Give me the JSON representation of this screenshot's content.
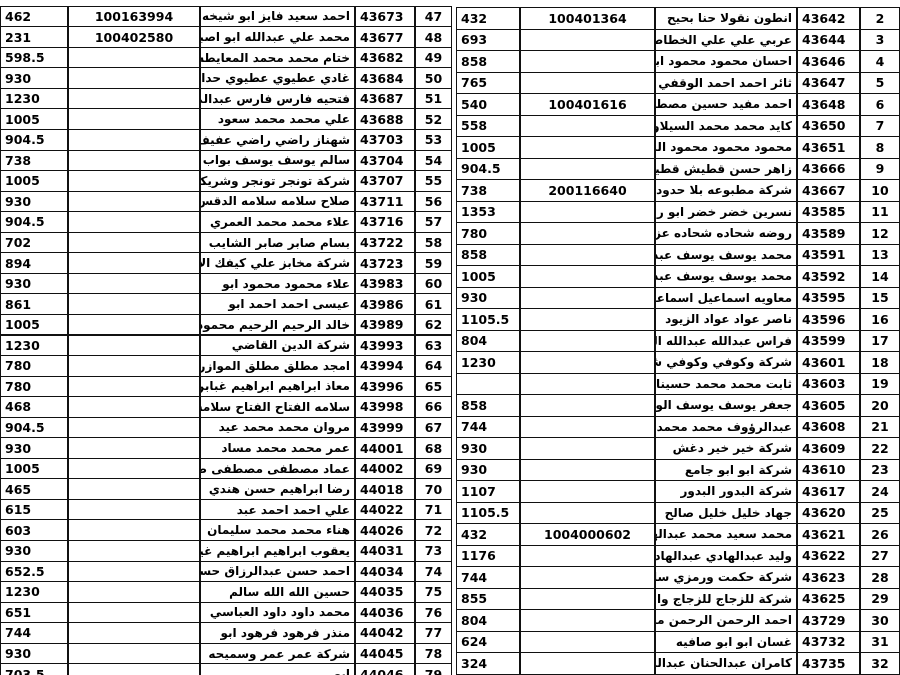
{
  "tables": {
    "left": {
      "rows": [
        {
          "amount": 462,
          "id": "100163994",
          "name": "احمد سعيد فايز ابو شيخه",
          "code": 43673,
          "no": 47
        },
        {
          "amount": 231,
          "id": "100402580",
          "name": "محمد علي عبدالله ابو اصبع",
          "code": 43677,
          "no": 48
        },
        {
          "amount": 598.5,
          "name": "ختام محمد محمد المعايطه",
          "code": 43682,
          "no": 49
        },
        {
          "amount": 930,
          "name": "غادي عطيوي عطيوي حداد",
          "code": 43684,
          "no": 50
        },
        {
          "amount": 1230,
          "name": "فتحيه فارس فارس عبدالمجيد",
          "code": 43687,
          "no": 51
        },
        {
          "amount": 1005,
          "name": "علي محمد محمد سعود",
          "code": 43688,
          "no": 52
        },
        {
          "amount": 904.5,
          "name": "شهناز راضي راضي عفيف",
          "code": 43703,
          "no": 53
        },
        {
          "amount": 738,
          "name": "سالم يوسف يوسف بواب",
          "code": 43704,
          "no": 54
        },
        {
          "amount": 1005,
          "name": "شركة تونجر تونجر وشريكتها",
          "code": 43707,
          "no": 55
        },
        {
          "amount": 930,
          "name": "صلاح سلامه سلامه الدقس",
          "code": 43711,
          "no": 56
        },
        {
          "amount": 904.5,
          "name": "علاء محمد محمد العمري",
          "code": 43716,
          "no": 57
        },
        {
          "amount": 702,
          "name": "بسام صابر صابر الشايب",
          "code": 43722,
          "no": 58
        },
        {
          "amount": 894,
          "name": "شركة مخابز علي كيفك الاليه",
          "code": 43723,
          "no": 59
        },
        {
          "amount": 930,
          "name": "علاء محمود محمود ابو",
          "code": 43983,
          "no": 60
        },
        {
          "amount": 861,
          "name": "عيسى احمد احمد ابو",
          "code": 43986,
          "no": 61
        },
        {
          "amount": 1005,
          "name": "خالد الرحيم الرحيم محمود",
          "code": 43989,
          "no": 62
        },
        {
          "amount": 1230,
          "name": "شركة الدين القاضي",
          "code": 43993,
          "no": 63
        },
        {
          "amount": 780,
          "name": "امجد مطلق مطلق الموازره",
          "code": 43994,
          "no": 64
        },
        {
          "amount": 780,
          "name": "معاذ ابراهيم ابراهيم غبابن",
          "code": 43996,
          "no": 65
        },
        {
          "amount": 468,
          "name": "سلامه الفتاح الفتاح سلامه",
          "code": 43998,
          "no": 66
        },
        {
          "amount": 904.5,
          "name": "مروان محمد محمد عيد",
          "code": 43999,
          "no": 67
        },
        {
          "amount": 930,
          "name": "عمر محمد محمد مساد",
          "code": 44001,
          "no": 68
        },
        {
          "amount": 1005,
          "name": "عماد مصطفى مصطفى صلاح",
          "code": 44002,
          "no": 69
        },
        {
          "amount": 465,
          "name": "رضا ابراهيم حسن هندي",
          "code": 44018,
          "no": 70
        },
        {
          "amount": 615,
          "name": "علي احمد احمد عبد",
          "code": 44022,
          "no": 71
        },
        {
          "amount": 603,
          "name": "هناء محمد محمد سليمان",
          "code": 44026,
          "no": 72
        },
        {
          "amount": 930,
          "name": "يعقوب ابراهيم ابراهيم غيث",
          "code": 44031,
          "no": 73
        },
        {
          "amount": 652.5,
          "name": "احمد حسن عبدالرزاق حسونه",
          "code": 44034,
          "no": 74
        },
        {
          "amount": 1230,
          "name": "حسين الله الله سالم",
          "code": 44035,
          "no": 75
        },
        {
          "amount": 651,
          "name": "محمد داود داود العباسي",
          "code": 44036,
          "no": 76
        },
        {
          "amount": 744,
          "name": "منذر فرهود فرهود ابو",
          "code": 44042,
          "no": 77
        },
        {
          "amount": 930,
          "name": "شركة عمر عمر وسميحه",
          "code": 44045,
          "no": 78
        },
        {
          "amount": 703.5,
          "name": "ابو",
          "code": 44046,
          "no": 79
        }
      ]
    },
    "right": {
      "rows": [
        {
          "amount": 432,
          "id": "100401364",
          "name": "انطون نقولا حنا بحيح",
          "code": 43642,
          "no": 2
        },
        {
          "amount": 693,
          "name": "عربي علي علي الخطاطبه",
          "code": 43644,
          "no": 3
        },
        {
          "amount": 858,
          "name": "احسان محمود محمود ابو",
          "code": 43646,
          "no": 4
        },
        {
          "amount": 765,
          "name": "ثائر احمد احمد الوقفي",
          "code": 43647,
          "no": 5
        },
        {
          "amount": 540,
          "id": "100401616",
          "name": "احمد مفيد حسين مصطفى",
          "code": 43648,
          "no": 6
        },
        {
          "amount": 558,
          "name": "كايد محمد محمد السيلاوي",
          "code": 43650,
          "no": 7
        },
        {
          "amount": 1005,
          "name": "محمود محمود محمود المسامح",
          "code": 43651,
          "no": 8
        },
        {
          "amount": 904.5,
          "name": "زاهر حسن قطيش قطيش",
          "code": 43666,
          "no": 9
        },
        {
          "amount": 738,
          "id": "200116640",
          "name": "شركة مطبوعه بلا حدود",
          "code": 43667,
          "no": 10
        },
        {
          "amount": 1353,
          "name": "نسرين خضر خضر ابو راشد",
          "code": 43585,
          "no": 11
        },
        {
          "amount": 780,
          "name": "روضه شحاده شحاده عزازي",
          "code": 43589,
          "no": 12
        },
        {
          "amount": 858,
          "name": "محمد يوسف يوسف عبد",
          "code": 43591,
          "no": 13
        },
        {
          "amount": 1005,
          "name": "محمد يوسف يوسف عبد",
          "code": 43592,
          "no": 14
        },
        {
          "amount": 930,
          "name": "معاويه اسماعيل اسماعيل محيسن",
          "code": 43595,
          "no": 15
        },
        {
          "amount": 1105.5,
          "name": "ناصر عواد عواد الزيود",
          "code": 43596,
          "no": 16
        },
        {
          "amount": 804,
          "name": "فراس عبدالله عبدالله النمري",
          "code": 43599,
          "no": 17
        },
        {
          "amount": 1230,
          "name": "شركة وكوفي وكوفي شوب",
          "code": 43601,
          "no": 18
        },
        {
          "name": "ثابت محمد محمد حسينات",
          "code": 43603,
          "no": 19
        },
        {
          "amount": 858,
          "name": "جعفر يوسف يوسف الور",
          "code": 43605,
          "no": 20
        },
        {
          "amount": 744,
          "name": "عبدالرؤوف محمد محمد الشريف",
          "code": 43608,
          "no": 21
        },
        {
          "amount": 930,
          "name": "شركة خير خير دغش",
          "code": 43609,
          "no": 22
        },
        {
          "amount": 930,
          "name": "شركة ابو ابو جامع",
          "code": 43610,
          "no": 23
        },
        {
          "amount": 1107,
          "name": "شركة البدور البدور",
          "code": 43617,
          "no": 24
        },
        {
          "amount": 1105.5,
          "name": "جهاد خليل خليل صالح",
          "code": 43620,
          "no": 25
        },
        {
          "amount": 432,
          "id": "1004000602",
          "name": "محمد سعيد محمد عبدالهادي",
          "code": 43621,
          "no": 26
        },
        {
          "amount": 1176,
          "name": "وليد عبدالهادي عبدالهادي علي",
          "code": 43622,
          "no": 27
        },
        {
          "amount": 744,
          "name": "شركة حكمت ورمزي سلام",
          "code": 43623,
          "no": 28
        },
        {
          "amount": 855,
          "name": "شركة للزجاج للزجاج والالمنيوم",
          "code": 43625,
          "no": 29
        },
        {
          "amount": 804,
          "name": "احمد الرحمن الرحمن محمد",
          "code": 43729,
          "no": 30
        },
        {
          "amount": 624,
          "name": "غسان ابو ابو صافيه",
          "code": 43732,
          "no": 31
        },
        {
          "amount": 324,
          "name": "كامران عبدالحنان عبدالرحمن مغل",
          "code": 43735,
          "no": 32
        }
      ]
    }
  }
}
